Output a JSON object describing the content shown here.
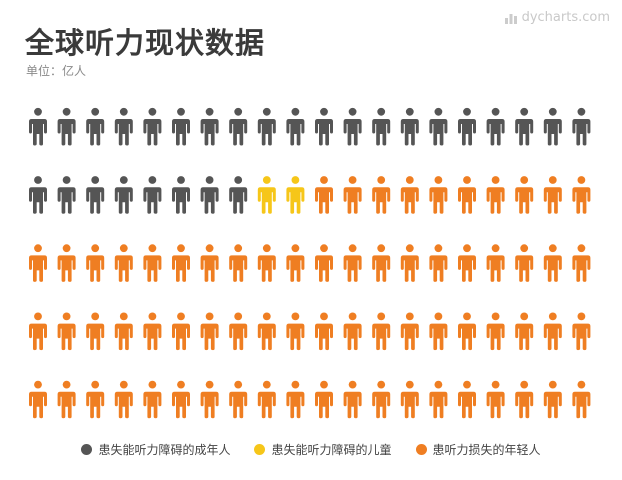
{
  "header": {
    "title": "全球听力现状数据",
    "subtitle": "单位：亿人",
    "watermark": "dycharts.com"
  },
  "chart_data": {
    "type": "pictogram",
    "title": "全球听力现状数据",
    "unit": "亿人",
    "icon": "person-icon",
    "grid": {
      "rows": 5,
      "columns": 20
    },
    "fill_order": "row-major",
    "series": [
      {
        "name": "患失能听力障碍的成年人",
        "count": 28,
        "color": "#555555"
      },
      {
        "name": "患失能听力障碍的儿童",
        "count": 2,
        "color": "#f6c619"
      },
      {
        "name": "患听力损失的年轻人",
        "count": 70,
        "color": "#ef7e22"
      }
    ],
    "legend_position": "bottom-center"
  }
}
